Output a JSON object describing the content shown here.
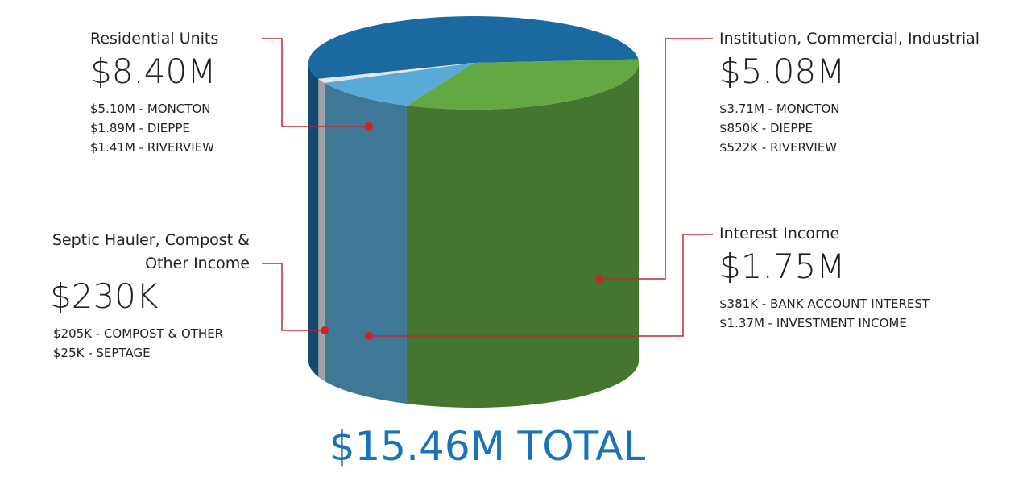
{
  "chart_data": {
    "type": "pie",
    "categories": [
      "Residential Units",
      "Institution, Commercial, Industrial",
      "Interest Income",
      "Septic Hauler, Compost & Other Income"
    ],
    "values": [
      8400000,
      5080000,
      1750000,
      230000
    ],
    "value_labels": [
      "$8.40M",
      "$5.08M",
      "$1.75M",
      "$230K"
    ],
    "colors": [
      "#1a6aa0",
      "#62a843",
      "#5aaad8",
      "#e4e4e4"
    ],
    "details": [
      [
        "$5.10M - MONCTON",
        "$1.89M - DIEPPE",
        "$1.41M - RIVERVIEW"
      ],
      [
        "$3.71M - MONCTON",
        "$850K - DIEPPE",
        "$522K - RIVERVIEW"
      ],
      [
        "$381K - BANK ACCOUNT INTEREST",
        "$1.37M - INVESTMENT INCOME"
      ],
      [
        "$205K - COMPOST & OTHER",
        "$25K - SEPTAGE"
      ]
    ],
    "total": "$15.46M TOTAL"
  }
}
